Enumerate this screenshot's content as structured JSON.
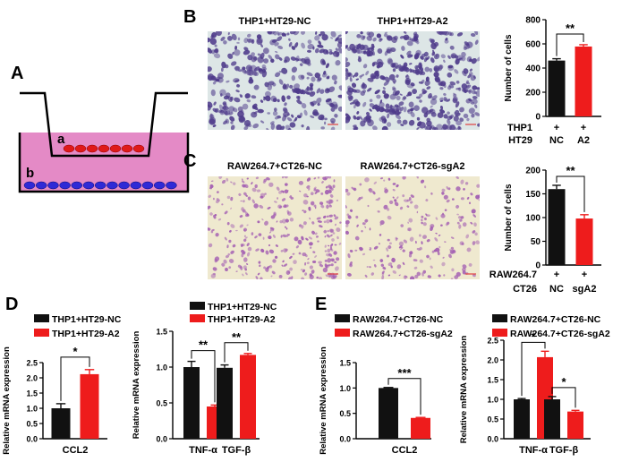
{
  "colors": {
    "black_bar": "#111111",
    "red_bar": "#ee1c1c",
    "pink_medium": "#e48ac6",
    "blue_cell": "#2f2ad6",
    "red_cell": "#e01a1a",
    "micro_bg_B": "#dde6e6",
    "micro_cell_B": "#4e3a8a",
    "micro_bg_C": "#efe9cf",
    "micro_cell_C": "#a25db2"
  },
  "panel_A": {
    "letter": "A",
    "label_a": "a",
    "label_b": "b",
    "cells_upper": 7,
    "cells_lower": 13
  },
  "panel_B": {
    "letter": "B",
    "image_titles": [
      "THP1+HT29-NC",
      "THP1+HT29-A2"
    ],
    "row_labels": [
      "THP1",
      "HT29"
    ],
    "conditions": [
      [
        "+",
        "NC"
      ],
      [
        "+",
        "A2"
      ]
    ],
    "significance": "**"
  },
  "panel_C": {
    "letter": "C",
    "image_titles": [
      "RAW264.7+CT26-NC",
      "RAW264.7+CT26-sgA2"
    ],
    "row_labels": [
      "RAW264.7",
      "CT26"
    ],
    "conditions": [
      [
        "+",
        "NC"
      ],
      [
        "+",
        "sgA2"
      ]
    ],
    "significance": "**"
  },
  "panel_D": {
    "letter": "D",
    "legend": [
      "THP1+HT29-NC",
      "THP1+HT29-A2"
    ]
  },
  "panel_E": {
    "letter": "E",
    "legend": [
      "RAW264.7+CT26-NC",
      "RAW264.7+CT26-sgA2"
    ]
  },
  "chart_data": [
    {
      "id": "B",
      "type": "bar",
      "ylabel": "Number of cells",
      "categories": [
        "NC",
        "A2"
      ],
      "values": [
        462,
        578
      ],
      "errors": [
        15,
        15
      ],
      "ylim": [
        0,
        800
      ],
      "yticks": [
        0,
        200,
        400,
        600,
        800
      ],
      "colors": [
        "#111111",
        "#ee1c1c"
      ],
      "sig": [
        {
          "from": 0,
          "to": 1,
          "label": "**"
        }
      ]
    },
    {
      "id": "C",
      "type": "bar",
      "ylabel": "Number of cells",
      "categories": [
        "NC",
        "sgA2"
      ],
      "values": [
        160,
        98
      ],
      "errors": [
        8,
        8
      ],
      "ylim": [
        0,
        200
      ],
      "yticks": [
        0,
        50,
        100,
        150,
        200
      ],
      "colors": [
        "#111111",
        "#ee1c1c"
      ],
      "sig": [
        {
          "from": 0,
          "to": 1,
          "label": "**"
        }
      ]
    },
    {
      "id": "D1",
      "type": "bar",
      "ylabel": "Relative mRNA expression",
      "categories": [
        "CCL2"
      ],
      "series": [
        {
          "name": "THP1+HT29-NC",
          "values": [
            1.0
          ],
          "errors": [
            0.15
          ]
        },
        {
          "name": "THP1+HT29-A2",
          "values": [
            2.12
          ],
          "errors": [
            0.15
          ]
        }
      ],
      "ylim": [
        0,
        2.5
      ],
      "yticks": [
        0.0,
        0.5,
        1.0,
        1.5,
        2.0,
        2.5
      ],
      "tickfmt": 1,
      "sig": [
        {
          "cat": 0,
          "label": "*"
        }
      ]
    },
    {
      "id": "D2",
      "type": "bar",
      "ylabel": "Relative mRNA expression",
      "categories": [
        "TNF-α",
        "TGF-β"
      ],
      "series": [
        {
          "name": "THP1+HT29-NC",
          "values": [
            1.0,
            0.99
          ],
          "errors": [
            0.08,
            0.04
          ]
        },
        {
          "name": "THP1+HT29-A2",
          "values": [
            0.45,
            1.17
          ],
          "errors": [
            0.02,
            0.02
          ]
        }
      ],
      "ylim": [
        0,
        1.5
      ],
      "yticks": [
        0.0,
        0.5,
        1.0,
        1.5
      ],
      "tickfmt": 1,
      "sig": [
        {
          "cat": 0,
          "label": "**"
        },
        {
          "cat": 1,
          "label": "**"
        }
      ]
    },
    {
      "id": "E1",
      "type": "bar",
      "ylabel": "Relative mRNA expression",
      "categories": [
        "CCL2"
      ],
      "series": [
        {
          "name": "RAW264.7+CT26-NC",
          "values": [
            1.0
          ],
          "errors": [
            0.01
          ]
        },
        {
          "name": "RAW264.7+CT26-sgA2",
          "values": [
            0.41
          ],
          "errors": [
            0.01
          ]
        }
      ],
      "ylim": [
        0,
        1.5
      ],
      "yticks": [
        0.0,
        0.5,
        1.0,
        1.5
      ],
      "tickfmt": 1,
      "sig": [
        {
          "cat": 0,
          "label": "***"
        }
      ]
    },
    {
      "id": "E2",
      "type": "bar",
      "ylabel": "Relative mRNA expression",
      "categories": [
        "TNF-α",
        "TGF-β"
      ],
      "series": [
        {
          "name": "RAW264.7+CT26-NC",
          "values": [
            1.0,
            1.0
          ],
          "errors": [
            0.02,
            0.07
          ]
        },
        {
          "name": "RAW264.7+CT26-sgA2",
          "values": [
            2.07,
            0.69
          ],
          "errors": [
            0.15,
            0.03
          ]
        }
      ],
      "ylim": [
        0,
        2.5
      ],
      "yticks": [
        0.0,
        0.5,
        1.0,
        1.5,
        2.0,
        2.5
      ],
      "tickfmt": 1,
      "sig": [
        {
          "cat": 0,
          "label": "*"
        },
        {
          "cat": 1,
          "label": "*"
        }
      ]
    }
  ]
}
